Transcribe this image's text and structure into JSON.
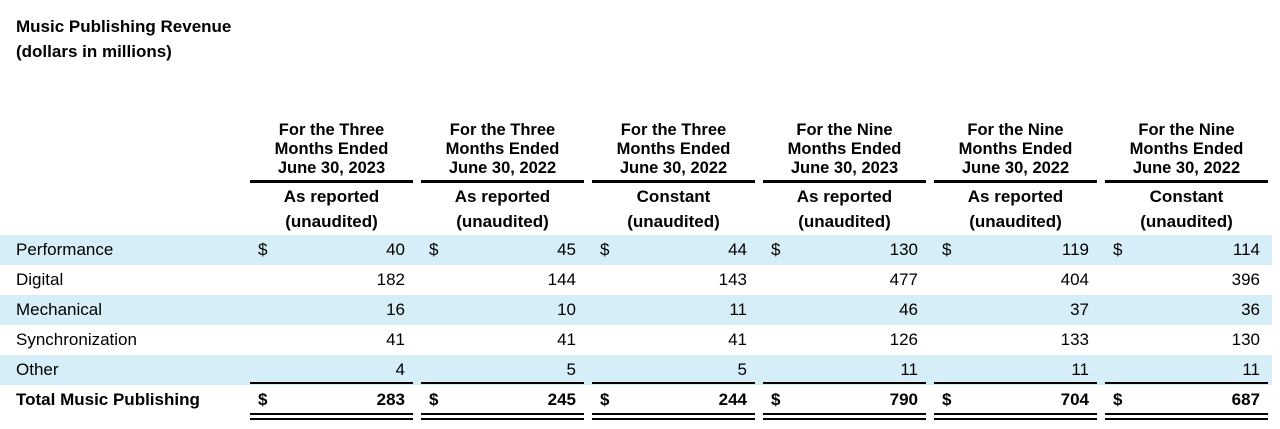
{
  "title": {
    "line1": "Music Publishing Revenue",
    "line2": "(dollars in millions)"
  },
  "columns": [
    {
      "period": [
        "For the Three",
        "Months Ended",
        "June 30, 2023"
      ],
      "basis": [
        "As reported",
        "(unaudited)"
      ]
    },
    {
      "period": [
        "For the Three",
        "Months Ended",
        "June 30, 2022"
      ],
      "basis": [
        "As reported",
        "(unaudited)"
      ]
    },
    {
      "period": [
        "For the Three",
        "Months Ended",
        "June 30, 2022"
      ],
      "basis": [
        "Constant",
        "(unaudited)"
      ]
    },
    {
      "period": [
        "For the Nine",
        "Months Ended",
        "June 30, 2023"
      ],
      "basis": [
        "As reported",
        "(unaudited)"
      ]
    },
    {
      "period": [
        "For the Nine",
        "Months Ended",
        "June 30, 2022"
      ],
      "basis": [
        "As reported",
        "(unaudited)"
      ]
    },
    {
      "period": [
        "For the Nine",
        "Months Ended",
        "June 30, 2022"
      ],
      "basis": [
        "Constant",
        "(unaudited)"
      ]
    }
  ],
  "currency_symbol": "$",
  "rows": [
    {
      "label": "Performance",
      "values": [
        "40",
        "45",
        "44",
        "130",
        "119",
        "114"
      ]
    },
    {
      "label": "Digital",
      "values": [
        "182",
        "144",
        "143",
        "477",
        "404",
        "396"
      ]
    },
    {
      "label": "Mechanical",
      "values": [
        "16",
        "10",
        "11",
        "46",
        "37",
        "36"
      ]
    },
    {
      "label": "Synchronization",
      "values": [
        "41",
        "41",
        "41",
        "126",
        "133",
        "130"
      ]
    },
    {
      "label": "Other",
      "values": [
        "4",
        "5",
        "5",
        "11",
        "11",
        "11"
      ]
    }
  ],
  "total": {
    "label": "Total Music Publishing",
    "values": [
      "283",
      "245",
      "244",
      "790",
      "704",
      "687"
    ]
  },
  "colors": {
    "row_shade": "#d6eef8",
    "rule": "#000000"
  }
}
